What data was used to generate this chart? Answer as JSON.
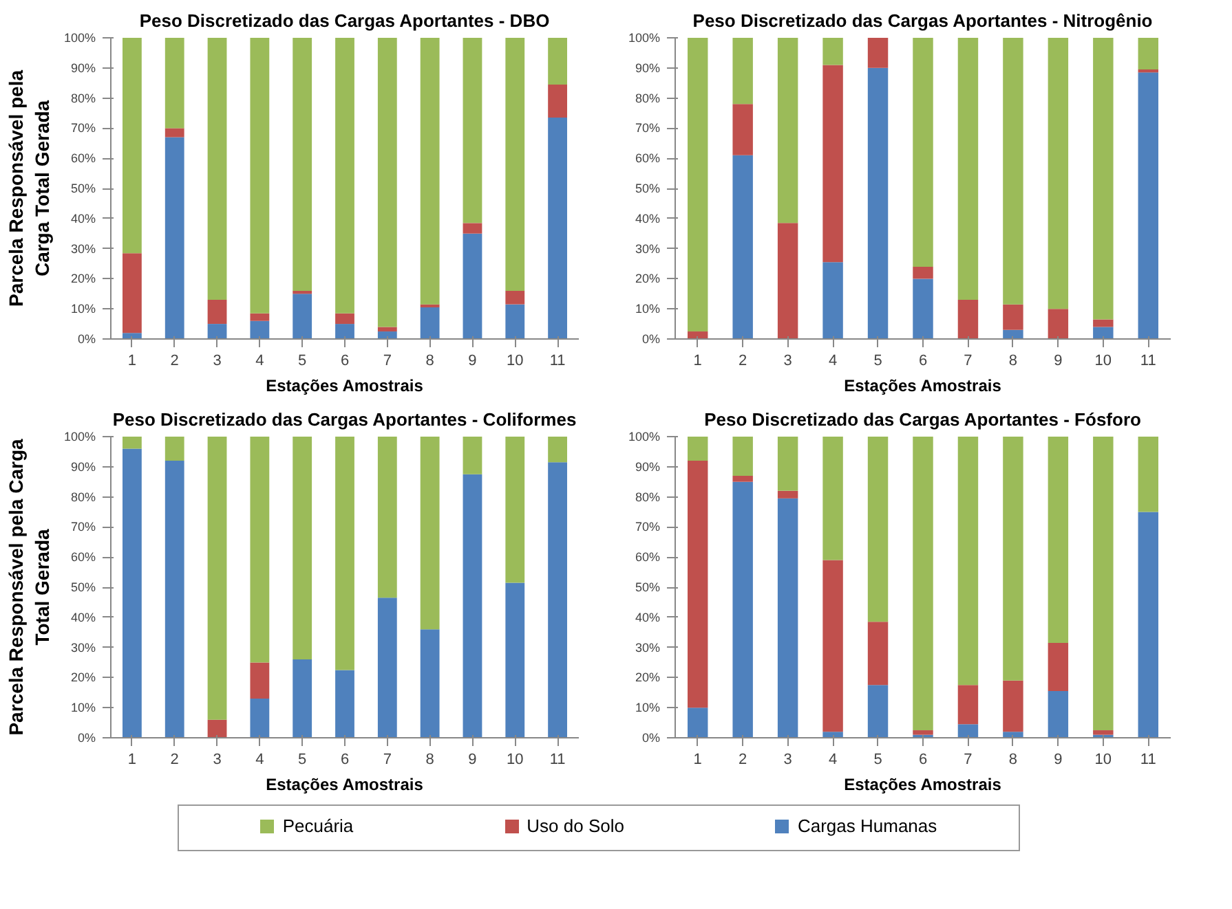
{
  "chart_data": [
    {
      "type": "bar",
      "stacked": true,
      "title": "Peso Discretizado das Cargas Aportantes - DBO",
      "xlabel": "Estações Amostrais",
      "ylabel": "Parcela Responsável pela\nCarga Total Gerada",
      "categories": [
        "1",
        "2",
        "3",
        "4",
        "5",
        "6",
        "7",
        "8",
        "9",
        "10",
        "11"
      ],
      "ylim": [
        0,
        100
      ],
      "yticks": [
        {
          "value": 0,
          "label": "0%"
        },
        {
          "value": 10,
          "label": "10%"
        },
        {
          "value": 20,
          "label": "20%"
        },
        {
          "value": 30,
          "label": "30%"
        },
        {
          "value": 40,
          "label": "40%"
        },
        {
          "value": 50,
          "label": "50%"
        },
        {
          "value": 60,
          "label": "60%"
        },
        {
          "value": 70,
          "label": "70%"
        },
        {
          "value": 80,
          "label": "80%"
        },
        {
          "value": 90,
          "label": "90%"
        },
        {
          "value": 100,
          "label": "100%"
        }
      ],
      "grid": false,
      "legend": "bottom",
      "series": [
        {
          "name": "Cargas Humanas",
          "color": "#4f81bd",
          "values": [
            2,
            67,
            5,
            6,
            15,
            5,
            2.5,
            10.5,
            35,
            11.5,
            73.5
          ]
        },
        {
          "name": "Uso do Solo",
          "color": "#c0504d",
          "values": [
            26.5,
            3,
            8,
            2.5,
            1,
            3.5,
            1.5,
            1,
            3.5,
            4.5,
            11
          ]
        },
        {
          "name": "Pecuária",
          "color": "#9bbb59",
          "values": [
            71.5,
            30,
            87,
            91.5,
            84,
            91.5,
            96,
            88.5,
            61.5,
            84,
            15.5
          ]
        }
      ]
    },
    {
      "type": "bar",
      "stacked": true,
      "title": "Peso Discretizado das Cargas Aportantes - Nitrogênio",
      "xlabel": "Estações Amostrais",
      "categories": [
        "1",
        "2",
        "3",
        "4",
        "5",
        "6",
        "7",
        "8",
        "9",
        "10",
        "11"
      ],
      "ylim": [
        0,
        100
      ],
      "yticks": [
        {
          "value": 0,
          "label": "0%"
        },
        {
          "value": 10,
          "label": "10%"
        },
        {
          "value": 20,
          "label": "20%"
        },
        {
          "value": 30,
          "label": "30%"
        },
        {
          "value": 40,
          "label": "40%"
        },
        {
          "value": 50,
          "label": "50%"
        },
        {
          "value": 60,
          "label": "60%"
        },
        {
          "value": 70,
          "label": "70%"
        },
        {
          "value": 80,
          "label": "80%"
        },
        {
          "value": 90,
          "label": "90%"
        },
        {
          "value": 100,
          "label": "100%"
        }
      ],
      "grid": false,
      "series": [
        {
          "color": "#4f81bd",
          "values": [
            0,
            61,
            0,
            25.5,
            90,
            20,
            0,
            3,
            0,
            4,
            88.5
          ]
        },
        {
          "color": "#c0504d",
          "values": [
            2.5,
            17,
            38.5,
            65.5,
            10,
            4,
            13,
            8.5,
            10,
            2.5,
            1
          ]
        },
        {
          "color": "#9bbb59",
          "values": [
            97.5,
            22,
            61.5,
            9,
            0,
            76,
            87,
            88.5,
            90,
            93.5,
            10.5
          ]
        }
      ]
    },
    {
      "type": "bar",
      "stacked": true,
      "title": "Peso Discretizado das Cargas Aportantes - Coliformes",
      "xlabel": "Estações Amostrais",
      "ylabel": "Parcela Responsável pela Carga\nTotal Gerada",
      "categories": [
        "1",
        "2",
        "3",
        "4",
        "5",
        "6",
        "7",
        "8",
        "9",
        "10",
        "11"
      ],
      "ylim": [
        0,
        100
      ],
      "yticks": [
        {
          "value": 0,
          "label": "0%"
        },
        {
          "value": 10,
          "label": "10%"
        },
        {
          "value": 20,
          "label": "20%"
        },
        {
          "value": 30,
          "label": "30%"
        },
        {
          "value": 40,
          "label": "40%"
        },
        {
          "value": 50,
          "label": "50%"
        },
        {
          "value": 60,
          "label": "60%"
        },
        {
          "value": 70,
          "label": "70%"
        },
        {
          "value": 80,
          "label": "80%"
        },
        {
          "value": 90,
          "label": "90%"
        },
        {
          "value": 100,
          "label": "100%"
        }
      ],
      "grid": false,
      "series": [
        {
          "color": "#4f81bd",
          "values": [
            96,
            92,
            0,
            13,
            26,
            22.5,
            46.5,
            36,
            87.5,
            51.5,
            91.5
          ]
        },
        {
          "color": "#c0504d",
          "values": [
            0,
            0,
            6,
            12,
            0,
            0,
            0,
            0,
            0,
            0,
            0
          ]
        },
        {
          "color": "#9bbb59",
          "values": [
            4,
            8,
            94,
            75,
            74,
            77.5,
            53.5,
            64,
            12.5,
            48.5,
            8.5
          ]
        }
      ]
    },
    {
      "type": "bar",
      "stacked": true,
      "title": "Peso Discretizado das Cargas Aportantes - Fósforo",
      "xlabel": "Estações Amostrais",
      "categories": [
        "1",
        "2",
        "3",
        "4",
        "5",
        "6",
        "7",
        "8",
        "9",
        "10",
        "11"
      ],
      "ylim": [
        0,
        100
      ],
      "yticks": [
        {
          "value": 0,
          "label": "0%"
        },
        {
          "value": 10,
          "label": "10%"
        },
        {
          "value": 20,
          "label": "20%"
        },
        {
          "value": 30,
          "label": "30%"
        },
        {
          "value": 40,
          "label": "40%"
        },
        {
          "value": 50,
          "label": "50%"
        },
        {
          "value": 60,
          "label": "60%"
        },
        {
          "value": 70,
          "label": "70%"
        },
        {
          "value": 80,
          "label": "80%"
        },
        {
          "value": 90,
          "label": "90%"
        },
        {
          "value": 100,
          "label": "100%"
        }
      ],
      "grid": false,
      "series": [
        {
          "color": "#4f81bd",
          "values": [
            10,
            85,
            79.5,
            2,
            17.5,
            1,
            4.5,
            2,
            15.5,
            1,
            75
          ]
        },
        {
          "color": "#c0504d",
          "values": [
            82,
            2,
            2.5,
            57,
            21,
            1.5,
            13,
            17,
            16,
            1.5,
            0
          ]
        },
        {
          "color": "#9bbb59",
          "values": [
            8,
            13,
            18,
            41,
            61.5,
            97.5,
            82.5,
            81,
            68.5,
            97.5,
            25
          ]
        }
      ]
    }
  ]
}
